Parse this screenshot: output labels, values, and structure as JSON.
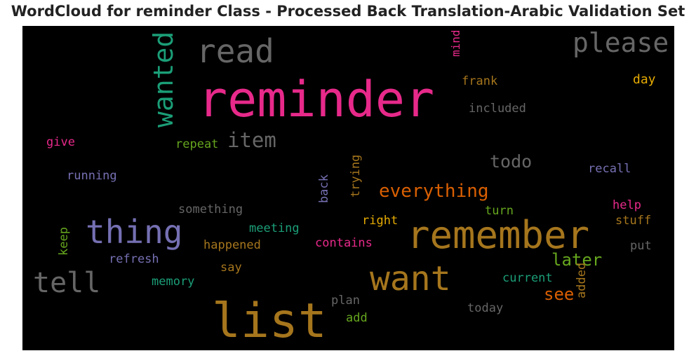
{
  "chart": {
    "title": "WordCloud for reminder Class - Processed Back Translation-Arabic Validation Set"
  },
  "colors": {
    "background": "#000000",
    "pink": "#e7298a",
    "mustard": "#a6761d",
    "gray": "#666666",
    "teal": "#1b9e77",
    "purple": "#7570b3",
    "orange": "#d95f02",
    "green": "#66a61e",
    "gold": "#e6ab02"
  },
  "chart_data": {
    "type": "wordcloud",
    "words": [
      {
        "text": "reminder",
        "color": "pink",
        "orientation": "horizontal"
      },
      {
        "text": "list",
        "color": "mustard",
        "orientation": "horizontal"
      },
      {
        "text": "remember",
        "color": "mustard",
        "orientation": "horizontal"
      },
      {
        "text": "want",
        "color": "mustard",
        "orientation": "horizontal"
      },
      {
        "text": "thing",
        "color": "purple",
        "orientation": "horizontal"
      },
      {
        "text": "wanted",
        "color": "teal",
        "orientation": "vertical"
      },
      {
        "text": "read",
        "color": "gray",
        "orientation": "horizontal"
      },
      {
        "text": "please",
        "color": "gray",
        "orientation": "horizontal"
      },
      {
        "text": "tell",
        "color": "gray",
        "orientation": "horizontal"
      },
      {
        "text": "item",
        "color": "gray",
        "orientation": "horizontal"
      },
      {
        "text": "everything",
        "color": "orange",
        "orientation": "horizontal"
      },
      {
        "text": "todo",
        "color": "gray",
        "orientation": "horizontal"
      },
      {
        "text": "later",
        "color": "green",
        "orientation": "horizontal"
      },
      {
        "text": "see",
        "color": "orange",
        "orientation": "horizontal"
      },
      {
        "text": "mind",
        "color": "pink",
        "orientation": "vertical"
      },
      {
        "text": "frank",
        "color": "mustard",
        "orientation": "horizontal"
      },
      {
        "text": "day",
        "color": "gold",
        "orientation": "horizontal"
      },
      {
        "text": "included",
        "color": "gray",
        "orientation": "horizontal"
      },
      {
        "text": "give",
        "color": "pink",
        "orientation": "horizontal"
      },
      {
        "text": "repeat",
        "color": "green",
        "orientation": "horizontal"
      },
      {
        "text": "trying",
        "color": "mustard",
        "orientation": "vertical"
      },
      {
        "text": "recall",
        "color": "purple",
        "orientation": "horizontal"
      },
      {
        "text": "running",
        "color": "purple",
        "orientation": "horizontal"
      },
      {
        "text": "back",
        "color": "purple",
        "orientation": "vertical"
      },
      {
        "text": "something",
        "color": "gray",
        "orientation": "horizontal"
      },
      {
        "text": "turn",
        "color": "green",
        "orientation": "horizontal"
      },
      {
        "text": "help",
        "color": "pink",
        "orientation": "horizontal"
      },
      {
        "text": "right",
        "color": "gold",
        "orientation": "horizontal"
      },
      {
        "text": "stuff",
        "color": "mustard",
        "orientation": "horizontal"
      },
      {
        "text": "keep",
        "color": "green",
        "orientation": "vertical"
      },
      {
        "text": "meeting",
        "color": "teal",
        "orientation": "horizontal"
      },
      {
        "text": "happened",
        "color": "mustard",
        "orientation": "horizontal"
      },
      {
        "text": "contains",
        "color": "pink",
        "orientation": "horizontal"
      },
      {
        "text": "put",
        "color": "gray",
        "orientation": "horizontal"
      },
      {
        "text": "refresh",
        "color": "purple",
        "orientation": "horizontal"
      },
      {
        "text": "say",
        "color": "mustard",
        "orientation": "horizontal"
      },
      {
        "text": "added",
        "color": "mustard",
        "orientation": "vertical"
      },
      {
        "text": "memory",
        "color": "teal",
        "orientation": "horizontal"
      },
      {
        "text": "current",
        "color": "teal",
        "orientation": "horizontal"
      },
      {
        "text": "plan",
        "color": "gray",
        "orientation": "horizontal"
      },
      {
        "text": "today",
        "color": "gray",
        "orientation": "horizontal"
      },
      {
        "text": "add",
        "color": "green",
        "orientation": "horizontal"
      }
    ]
  }
}
